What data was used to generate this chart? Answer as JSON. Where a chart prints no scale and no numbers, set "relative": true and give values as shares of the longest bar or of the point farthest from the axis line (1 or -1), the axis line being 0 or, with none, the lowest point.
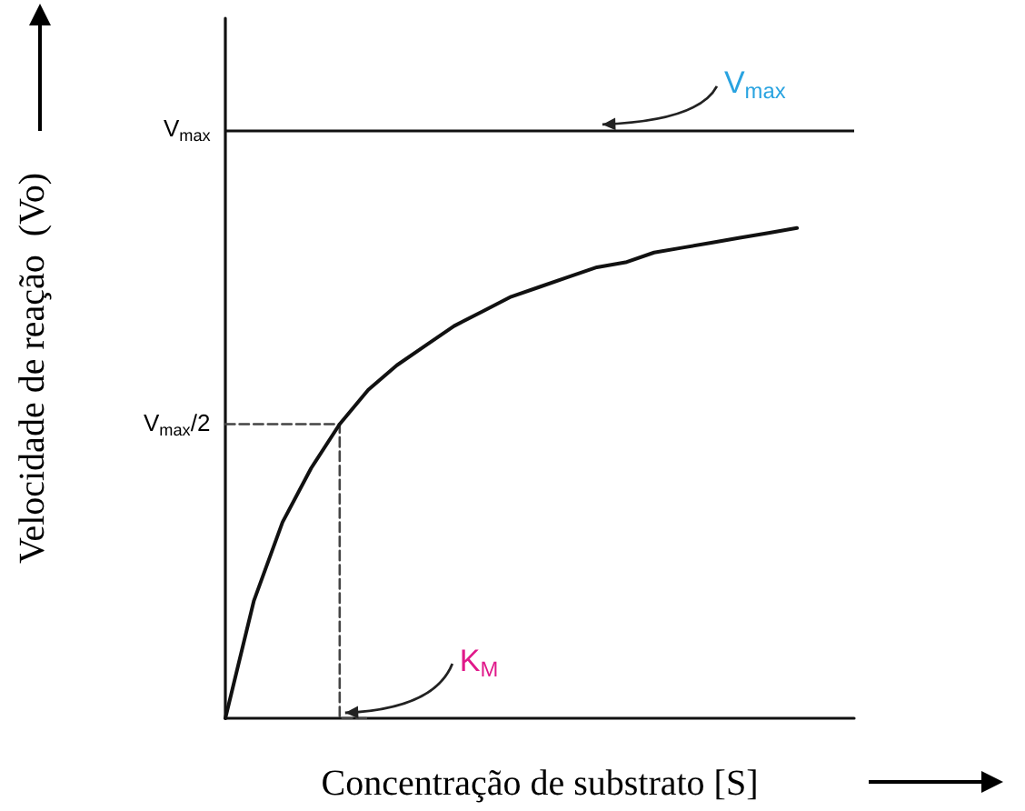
{
  "chart_data": {
    "type": "line",
    "xlabel": "Concentração de substrato [S]",
    "ylabel": "Velocidade de reação  (Vo)",
    "relative": true,
    "grid": false,
    "marker": "none",
    "categories": [
      null,
      null,
      null,
      null,
      null,
      null,
      null,
      null,
      null,
      null,
      null,
      null,
      null,
      null,
      null,
      null,
      null,
      null,
      null,
      null,
      null,
      null,
      null
    ],
    "series": [
      {
        "color": "#111111",
        "values": [
          0,
          0.24,
          0.4,
          0.51,
          0.6,
          0.67,
          0.72,
          0.76,
          0.8,
          0.83,
          0.86,
          0.88,
          0.9,
          0.92,
          0.93,
          0.95,
          0.96,
          0.97,
          0.98,
          0.99,
          1,
          null,
          null
        ]
      },
      {
        "type": "step",
        "color": "#444444",
        "line_style": "dashed",
        "values": [
          0.6,
          0.6,
          0.6,
          0.6,
          0.6,
          0,
          null,
          null,
          null,
          null,
          null,
          null,
          null,
          null,
          null,
          null,
          null,
          null,
          null,
          null,
          null,
          null,
          null
        ]
      }
    ],
    "ref_lines": [
      {
        "axis": "y",
        "value": 1.2,
        "label": "V$_{max}$",
        "color": "#111111"
      }
    ],
    "annotations": [
      "V$_{max}$/2",
      {
        "text": "V$_{max}$",
        "y": 1.2
      },
      "K$_{M}$"
    ]
  }
}
